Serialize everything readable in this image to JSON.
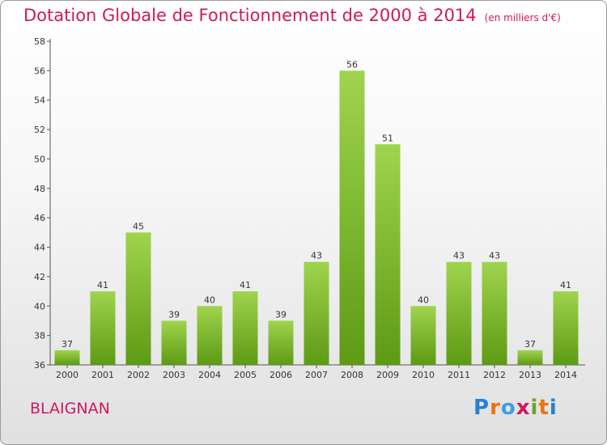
{
  "title": "Dotation Globale de Fonctionnement de 2000 à 2014",
  "unit_note": "(en milliers d'€)",
  "commune": "BLAIGNAN",
  "logo": {
    "text": "Proxiti",
    "colors": [
      "#2a7fd4",
      "#e87511",
      "#3aa0e0",
      "#d0185e",
      "#6aa52a",
      "#e87511",
      "#2a7fd4"
    ]
  },
  "colors": {
    "title": "#d0185e",
    "bar_light": "#9fd44e",
    "bar_dark": "#5e9a14"
  },
  "chart_data": {
    "type": "bar",
    "title": "Dotation Globale de Fonctionnement de 2000 à 2014",
    "subtitle": "(en milliers d'€)",
    "categories": [
      "2000",
      "2001",
      "2002",
      "2003",
      "2004",
      "2005",
      "2006",
      "2007",
      "2008",
      "2009",
      "2010",
      "2011",
      "2012",
      "2013",
      "2014"
    ],
    "values": [
      37,
      41,
      45,
      39,
      40,
      41,
      39,
      43,
      56,
      51,
      40,
      43,
      43,
      37,
      41
    ],
    "ylim": [
      36,
      58
    ],
    "yticks": [
      36,
      38,
      40,
      42,
      44,
      46,
      48,
      50,
      52,
      54,
      56,
      58
    ],
    "xlabel": "",
    "ylabel": "",
    "grid": false,
    "legend": "none"
  }
}
